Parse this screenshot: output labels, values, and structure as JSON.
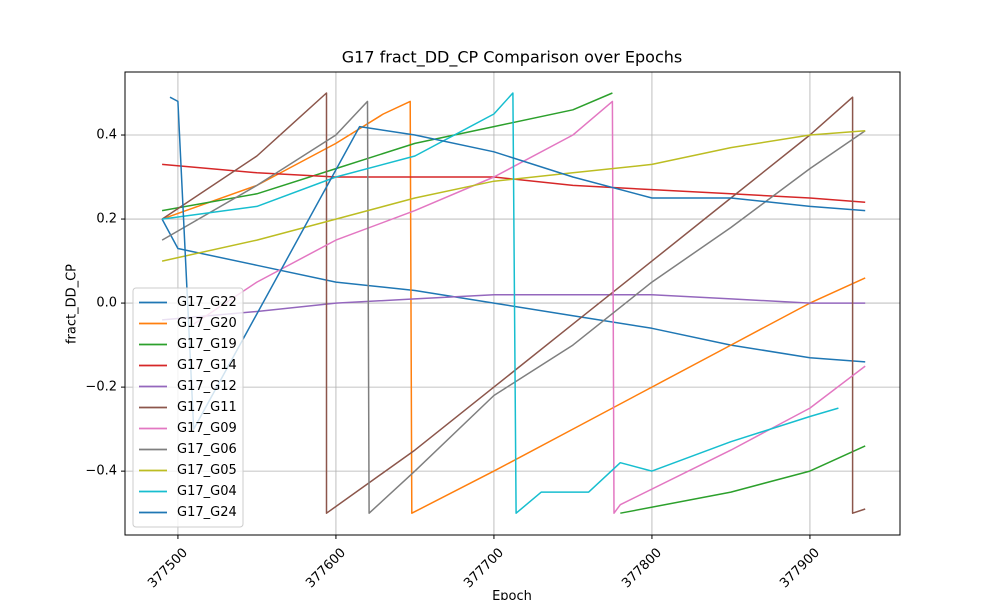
{
  "chart_data": {
    "type": "line",
    "title": "G17 fract_DD_CP Comparison over Epochs",
    "x_label": "Epoch",
    "y_label": "fract_DD_CP",
    "xlim": [
      377466.5,
      377957
    ],
    "ylim": [
      -0.552,
      0.55
    ],
    "xticks": [
      377500,
      377600,
      377700,
      377800,
      377900
    ],
    "yticks": [
      {
        "value": -0.4,
        "label": "−0.4"
      },
      {
        "value": -0.2,
        "label": "−0.2"
      },
      {
        "value": 0,
        "label": "0.0"
      },
      {
        "value": 0.2,
        "label": "0.2"
      },
      {
        "value": 0.4,
        "label": "0.4"
      }
    ],
    "grid": true,
    "legend": "lower left",
    "series": [
      {
        "name": "G17_G22",
        "color": "#1f77b4",
        "x": [
          377490,
          377500,
          377550,
          377600,
          377650,
          377700,
          377750,
          377800,
          377850,
          377900,
          377935
        ],
        "values": [
          0.2,
          0.13,
          0.09,
          0.05,
          0.03,
          0.0,
          -0.03,
          -0.06,
          -0.1,
          -0.13,
          -0.14
        ]
      },
      {
        "name": "G17_G20",
        "color": "#ff7f0e",
        "x": [
          377490,
          377550,
          377600,
          377630,
          377647,
          377648,
          377700,
          377750,
          377800,
          377850,
          377900,
          377935
        ],
        "values": [
          0.2,
          0.28,
          0.38,
          0.45,
          0.48,
          -0.5,
          -0.4,
          -0.3,
          -0.2,
          -0.1,
          0.0,
          0.06
        ]
      },
      {
        "name": "G17_G19",
        "color": "#2ca02c",
        "x": [
          377490,
          377550,
          377600,
          377650,
          377700,
          377750,
          377775,
          377777,
          377780,
          377850,
          377900,
          377935
        ],
        "values": [
          0.22,
          0.26,
          0.32,
          0.38,
          0.42,
          0.46,
          0.5,
          null,
          -0.5,
          -0.45,
          -0.4,
          -0.34
        ]
      },
      {
        "name": "G17_G14",
        "color": "#d62728",
        "x": [
          377490,
          377550,
          377600,
          377700,
          377750,
          377800,
          377850,
          377900,
          377935
        ],
        "values": [
          0.33,
          0.31,
          0.3,
          0.3,
          0.28,
          0.27,
          0.26,
          0.25,
          0.24
        ]
      },
      {
        "name": "G17_G12",
        "color": "#9467bd",
        "x": [
          377490,
          377550,
          377600,
          377650,
          377700,
          377750,
          377800,
          377850,
          377900,
          377935
        ],
        "values": [
          -0.04,
          -0.02,
          0.0,
          0.01,
          0.02,
          0.02,
          0.02,
          0.01,
          0.0,
          0.0
        ]
      },
      {
        "name": "G17_G11",
        "color": "#8c564b",
        "x": [
          377490,
          377550,
          377594,
          377594,
          377650,
          377700,
          377750,
          377800,
          377850,
          377900,
          377927,
          377927,
          377935
        ],
        "values": [
          0.2,
          0.35,
          0.5,
          -0.5,
          -0.35,
          -0.2,
          -0.05,
          0.1,
          0.25,
          0.4,
          0.49,
          -0.5,
          -0.49
        ]
      },
      {
        "name": "G17_G09",
        "color": "#e377c2",
        "x": [
          377510,
          377550,
          377600,
          377650,
          377700,
          377750,
          377775,
          377776,
          377780,
          377850,
          377900,
          377935
        ],
        "values": [
          -0.05,
          0.05,
          0.15,
          0.22,
          0.3,
          0.4,
          0.48,
          -0.5,
          -0.48,
          -0.35,
          -0.25,
          -0.15
        ]
      },
      {
        "name": "G17_G06",
        "color": "#7f7f7f",
        "x": [
          377490,
          377550,
          377600,
          377620,
          377621,
          377650,
          377700,
          377750,
          377800,
          377850,
          377900,
          377935
        ],
        "values": [
          0.15,
          0.28,
          0.4,
          0.48,
          -0.5,
          -0.4,
          -0.22,
          -0.1,
          0.05,
          0.18,
          0.32,
          0.41
        ]
      },
      {
        "name": "G17_G05",
        "color": "#bcbd22",
        "x": [
          377490,
          377550,
          377600,
          377650,
          377700,
          377750,
          377800,
          377850,
          377900,
          377935
        ],
        "values": [
          0.1,
          0.15,
          0.2,
          0.25,
          0.29,
          0.31,
          0.33,
          0.37,
          0.4,
          0.41
        ]
      },
      {
        "name": "G17_G04",
        "color": "#17becf",
        "x": [
          377490,
          377550,
          377600,
          377650,
          377700,
          377712,
          377714,
          377730,
          377760,
          377780,
          377800,
          377850,
          377900,
          377918
        ],
        "values": [
          0.2,
          0.23,
          0.3,
          0.35,
          0.45,
          0.5,
          -0.5,
          -0.45,
          -0.45,
          -0.38,
          -0.4,
          -0.33,
          -0.27,
          -0.25
        ]
      },
      {
        "name": "G17_G24",
        "color": "#1f77b4",
        "x": [
          377495,
          377500,
          377510,
          377615,
          377650,
          377700,
          377750,
          377800,
          377850,
          377900,
          377935
        ],
        "values": [
          0.49,
          0.48,
          -0.3,
          0.42,
          0.4,
          0.36,
          0.3,
          0.25,
          0.25,
          0.23,
          0.22
        ]
      }
    ]
  }
}
